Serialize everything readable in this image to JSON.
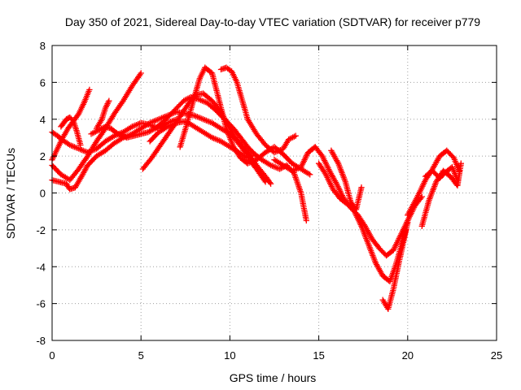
{
  "chart_data": {
    "type": "scatter",
    "title": "Day 350 of 2021, Sidereal Day-to-day VTEC variation (SDTVAR) for receiver p779",
    "xlabel": "GPS time / hours",
    "ylabel": "SDTVAR / TECUs",
    "xlim": [
      0,
      25
    ],
    "ylim": [
      -8,
      8
    ],
    "xticks": [
      0,
      5,
      10,
      15,
      20,
      25
    ],
    "yticks": [
      -8,
      -6,
      -4,
      -2,
      0,
      2,
      4,
      6,
      8
    ],
    "xtick_labels": [
      "0",
      "5",
      "10",
      "15",
      "20",
      "25"
    ],
    "ytick_labels": [
      "-8",
      "-6",
      "-4",
      "-2",
      "0",
      "2",
      "4",
      "6",
      "8"
    ],
    "grid": true,
    "legend": "none",
    "marker": "plus",
    "color": "#ff0000",
    "series": [
      {
        "name": "track-1",
        "x": [
          0,
          0.3,
          0.7,
          1.0,
          1.5,
          2.0,
          2.5,
          3.0,
          3.5,
          4.0,
          4.5,
          5.0,
          5.5,
          6.0,
          6.5,
          7.0
        ],
        "y": [
          3.3,
          3.1,
          2.8,
          2.6,
          2.4,
          2.2,
          2.4,
          2.8,
          3.1,
          3.3,
          3.6,
          3.8,
          3.7,
          3.5,
          3.8,
          4.0
        ]
      },
      {
        "name": "track-2",
        "x": [
          0,
          0.3,
          0.6,
          0.9,
          1.2,
          1.5,
          1.8,
          2.1
        ],
        "y": [
          1.8,
          2.4,
          3.0,
          3.5,
          3.9,
          4.3,
          4.9,
          5.6
        ]
      },
      {
        "name": "track-3",
        "x": [
          0.5,
          0.8,
          1.0,
          1.2,
          1.4,
          1.6
        ],
        "y": [
          3.6,
          4.0,
          4.1,
          3.9,
          3.3,
          2.6
        ]
      },
      {
        "name": "track-4",
        "x": [
          0,
          0.4,
          0.8,
          1.0,
          1.3,
          1.6,
          2.0,
          2.5,
          3.0,
          3.5,
          4.0,
          4.5,
          5.0,
          5.5,
          6.0,
          6.5,
          7.0,
          7.5,
          8.0,
          8.5,
          9.0,
          9.5,
          10.0,
          10.5,
          11.0,
          11.5,
          12.0,
          12.3
        ],
        "y": [
          0.7,
          0.6,
          0.5,
          0.2,
          0.3,
          0.8,
          1.5,
          2.0,
          2.3,
          2.7,
          3.0,
          3.2,
          3.5,
          3.8,
          4.0,
          4.2,
          4.4,
          4.3,
          4.2,
          4.0,
          3.8,
          3.5,
          3.2,
          2.8,
          2.2,
          1.5,
          0.9,
          0.5
        ]
      },
      {
        "name": "track-5",
        "x": [
          0,
          0.5,
          1.0,
          1.5,
          2.0,
          2.5,
          3.0,
          3.5,
          4.0,
          4.5,
          5.0
        ],
        "y": [
          1.5,
          1.0,
          0.7,
          1.3,
          2.0,
          2.8,
          3.5,
          4.3,
          5.0,
          5.8,
          6.5
        ]
      },
      {
        "name": "track-6",
        "x": [
          2.2,
          2.6,
          3.0,
          3.3,
          3.7,
          4.2,
          4.6,
          5.0,
          5.4,
          5.8,
          6.2,
          6.6,
          7.0,
          7.4,
          7.8,
          8.2,
          8.7,
          9.2,
          9.7,
          10.2,
          10.6,
          11.0,
          11.4,
          11.8,
          12.3,
          12.8,
          13.2,
          13.6,
          14.0,
          14.3
        ],
        "y": [
          3.2,
          3.4,
          3.6,
          3.5,
          3.2,
          3.0,
          3.1,
          3.2,
          3.3,
          3.5,
          3.8,
          4.2,
          4.6,
          5.0,
          5.2,
          5.1,
          4.9,
          4.5,
          4.0,
          3.5,
          3.0,
          2.5,
          2.1,
          1.8,
          1.5,
          1.3,
          1.5,
          1.1,
          0.0,
          -1.5
        ]
      },
      {
        "name": "track-7",
        "x": [
          2.5,
          2.8,
          3.0,
          3.2
        ],
        "y": [
          3.5,
          4.0,
          4.6,
          5.0
        ]
      },
      {
        "name": "track-8",
        "x": [
          5.1,
          5.6,
          6.1,
          6.6,
          7.1,
          7.5,
          8.0,
          8.5,
          9.0,
          9.5,
          10.0,
          10.4,
          10.8,
          11.2
        ],
        "y": [
          1.3,
          1.9,
          2.6,
          3.3,
          4.0,
          4.6,
          5.3,
          5.4,
          5.0,
          4.4,
          3.5,
          2.8,
          2.3,
          2.0
        ]
      },
      {
        "name": "track-9",
        "x": [
          7.2,
          7.6,
          8.0,
          8.3,
          8.6,
          9.0,
          9.4,
          9.8,
          10.2,
          10.6,
          11.0,
          11.5,
          12.0,
          12.5,
          13.0,
          13.5,
          14.0,
          14.5
        ],
        "y": [
          2.5,
          3.8,
          5.2,
          6.2,
          6.8,
          6.5,
          5.0,
          3.5,
          2.5,
          1.9,
          1.6,
          1.8,
          2.2,
          2.5,
          2.1,
          1.6,
          1.3,
          1.0
        ]
      },
      {
        "name": "track-10",
        "x": [
          9.5,
          9.8,
          10.1,
          10.4,
          10.7,
          11.0,
          11.5,
          12.0,
          12.5,
          13.0,
          13.3,
          13.7
        ],
        "y": [
          6.7,
          6.8,
          6.6,
          6.0,
          5.0,
          4.0,
          3.2,
          2.6,
          2.2,
          2.4,
          2.9,
          3.1
        ]
      },
      {
        "name": "track-11",
        "x": [
          5.5,
          6.0,
          6.5,
          7.0,
          7.5,
          8.0,
          8.5,
          9.0,
          9.5,
          10.0,
          10.5,
          11.0,
          11.5,
          12.0
        ],
        "y": [
          2.8,
          3.3,
          3.6,
          3.8,
          3.9,
          3.6,
          3.3,
          3.0,
          2.8,
          2.5,
          2.2,
          1.9,
          1.3,
          0.6
        ]
      },
      {
        "name": "track-12",
        "x": [
          12.5,
          13.0,
          13.5,
          14.0,
          14.4,
          14.8,
          15.2,
          15.6,
          16.0,
          16.4,
          16.8,
          17.2,
          17.6,
          18.0,
          18.4,
          18.8,
          19.2,
          19.6,
          20.0,
          20.4,
          20.8
        ],
        "y": [
          1.8,
          1.5,
          1.2,
          1.4,
          2.2,
          2.5,
          2.0,
          1.2,
          0.5,
          -0.3,
          -0.8,
          -1.2,
          -1.8,
          -2.5,
          -3.0,
          -3.4,
          -3.1,
          -2.3,
          -1.5,
          -0.7,
          -0.2
        ]
      },
      {
        "name": "track-13",
        "x": [
          15.0,
          15.4,
          15.8,
          16.2,
          16.6,
          17.0,
          17.4,
          17.8,
          18.2,
          18.6,
          19.0,
          19.3,
          19.6,
          19.9
        ],
        "y": [
          1.6,
          1.0,
          0.2,
          -0.3,
          -0.6,
          -1.0,
          -1.8,
          -2.8,
          -3.8,
          -4.5,
          -4.8,
          -4.0,
          -3.0,
          -2.0
        ]
      },
      {
        "name": "track-14",
        "x": [
          15.7,
          16.1,
          16.5,
          16.8,
          17.1,
          17.4
        ],
        "y": [
          2.3,
          1.6,
          0.6,
          -0.5,
          -0.9,
          0.3
        ]
      },
      {
        "name": "track-15",
        "x": [
          18.6,
          18.9,
          19.2,
          19.5,
          19.8,
          20.0
        ],
        "y": [
          -5.8,
          -6.3,
          -5.2,
          -3.8,
          -2.5,
          -1.6
        ]
      },
      {
        "name": "track-16",
        "x": [
          20.0,
          20.5,
          21.0,
          21.4,
          21.8,
          22.2,
          22.6,
          22.9
        ],
        "y": [
          -1.2,
          -0.3,
          0.7,
          1.3,
          2.0,
          2.3,
          1.9,
          1.2
        ]
      },
      {
        "name": "track-17",
        "x": [
          20.8,
          21.2,
          21.6,
          22.0,
          22.4,
          22.8,
          23.0
        ],
        "y": [
          -1.8,
          -0.4,
          0.6,
          1.2,
          0.9,
          0.4,
          1.6
        ]
      },
      {
        "name": "track-18",
        "x": [
          21.0,
          21.4,
          21.8,
          22.1,
          22.5,
          22.8
        ],
        "y": [
          0.9,
          1.2,
          0.8,
          1.1,
          1.4,
          0.7
        ]
      }
    ]
  }
}
